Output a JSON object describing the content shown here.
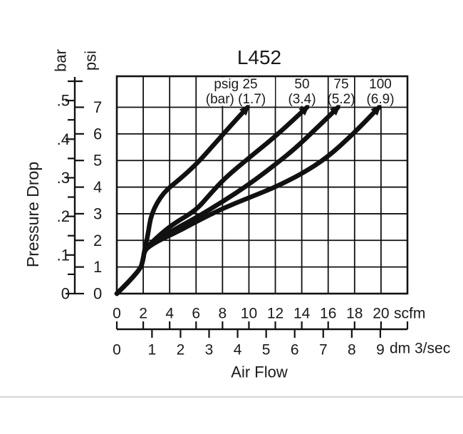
{
  "title": "L452",
  "y_axis": {
    "unit_primary": "bar",
    "unit_secondary": "psi",
    "axis_title": "Pressure Drop",
    "bar_tick_labels": [
      "0",
      ".1",
      ".2",
      ".3",
      ".4",
      ".5"
    ],
    "psi_tick_labels": [
      "0",
      "1",
      "2",
      "3",
      "4",
      "5",
      "6",
      "7"
    ]
  },
  "x_axis": {
    "unit_primary": "scfm",
    "unit_secondary": "dm 3/sec",
    "axis_title": "Air Flow",
    "scfm_tick_labels": [
      "0",
      "2",
      "4",
      "6",
      "8",
      "10",
      "12",
      "14",
      "16",
      "18",
      "20"
    ],
    "dm3_tick_labels": [
      "0",
      "1",
      "2",
      "3",
      "4",
      "5",
      "6",
      "7",
      "8",
      "9"
    ]
  },
  "curve_labels": [
    {
      "line1": "psig 25",
      "line2": "(bar) (1.7)"
    },
    {
      "line1": "50",
      "line2": "(3.4)"
    },
    {
      "line1": "75",
      "line2": "(5.2)"
    },
    {
      "line1": "100",
      "line2": "(6.9)"
    }
  ],
  "colors": {
    "line": "#111111",
    "background": "#ffffff",
    "divider": "#c9c9c9"
  },
  "chart_data": {
    "type": "line",
    "title": "L452",
    "xlabel": "Air Flow",
    "ylabel": "Pressure Drop",
    "x_units": [
      "scfm",
      "dm 3/sec"
    ],
    "y_units": [
      "bar",
      "psi"
    ],
    "x_range_scfm": [
      0,
      22
    ],
    "y_range_psi": [
      0,
      8.2
    ],
    "grid": true,
    "scfm_ticks": [
      0,
      2,
      4,
      6,
      8,
      10,
      12,
      14,
      16,
      18,
      20
    ],
    "dm3_per_sec_ticks": [
      0,
      1,
      2,
      3,
      4,
      5,
      6,
      7,
      8,
      9
    ],
    "psi_ticks": [
      0,
      1,
      2,
      3,
      4,
      5,
      6,
      7
    ],
    "bar_major_ticks": [
      0,
      0.1,
      0.2,
      0.3,
      0.4,
      0.5
    ],
    "bar_minor_ticks": [
      0.05,
      0.15,
      0.25,
      0.35,
      0.45,
      0.55
    ],
    "series": [
      {
        "name": "psig 25 (1.7 bar)",
        "psig": 25,
        "bar": 1.7,
        "points_scfm_psi": [
          [
            0,
            0
          ],
          [
            1.75,
            0.85
          ],
          [
            2.0,
            1.3
          ],
          [
            2.1,
            1.65
          ],
          [
            2.35,
            2.2
          ],
          [
            2.6,
            3.0
          ],
          [
            3.5,
            3.8
          ],
          [
            4.9,
            4.35
          ],
          [
            6.2,
            4.95
          ],
          [
            7.5,
            5.68
          ],
          [
            8.7,
            6.35
          ],
          [
            9.9,
            7.0
          ]
        ]
      },
      {
        "name": "psig 50 (3.4 bar)",
        "psig": 50,
        "bar": 3.4,
        "points_scfm_psi": [
          [
            0,
            0
          ],
          [
            1.75,
            0.85
          ],
          [
            2.0,
            1.3
          ],
          [
            2.1,
            1.65
          ],
          [
            3.0,
            2.1
          ],
          [
            4.2,
            2.6
          ],
          [
            6.0,
            3.13
          ],
          [
            7.0,
            3.7
          ],
          [
            8.2,
            4.35
          ],
          [
            10.0,
            5.1
          ],
          [
            12.0,
            5.9
          ],
          [
            14.4,
            7.0
          ]
        ]
      },
      {
        "name": "psig 75 (5.2 bar)",
        "psig": 75,
        "bar": 5.2,
        "points_scfm_psi": [
          [
            0,
            0
          ],
          [
            1.75,
            0.85
          ],
          [
            2.0,
            1.3
          ],
          [
            2.1,
            1.65
          ],
          [
            3.0,
            2.0
          ],
          [
            4.5,
            2.45
          ],
          [
            6.0,
            2.85
          ],
          [
            8.0,
            3.45
          ],
          [
            10.0,
            4.1
          ],
          [
            12.0,
            4.85
          ],
          [
            13.5,
            5.45
          ],
          [
            15.2,
            6.25
          ],
          [
            16.75,
            7.0
          ]
        ]
      },
      {
        "name": "psig 100 (6.9 bar)",
        "psig": 100,
        "bar": 6.9,
        "points_scfm_psi": [
          [
            0,
            0
          ],
          [
            1.75,
            0.85
          ],
          [
            2.0,
            1.3
          ],
          [
            2.1,
            1.65
          ],
          [
            3.0,
            1.95
          ],
          [
            4.5,
            2.3
          ],
          [
            6.0,
            2.7
          ],
          [
            8.0,
            3.2
          ],
          [
            10.0,
            3.6
          ],
          [
            12.0,
            4.0
          ],
          [
            14.0,
            4.5
          ],
          [
            15.9,
            5.1
          ],
          [
            17.9,
            6.0
          ],
          [
            19.85,
            7.0
          ]
        ]
      }
    ]
  }
}
